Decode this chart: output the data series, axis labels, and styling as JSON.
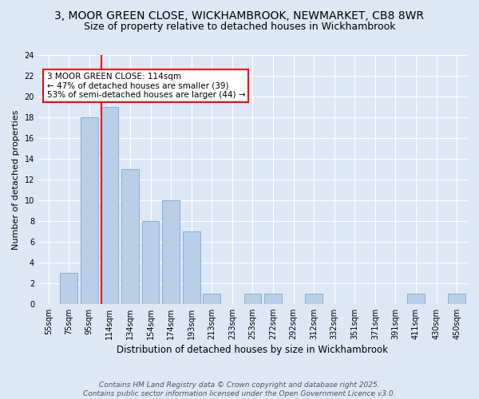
{
  "title_line1": "3, MOOR GREEN CLOSE, WICKHAMBROOK, NEWMARKET, CB8 8WR",
  "title_line2": "Size of property relative to detached houses in Wickhambrook",
  "xlabel": "Distribution of detached houses by size in Wickhambrook",
  "ylabel": "Number of detached properties",
  "footer_line1": "Contains HM Land Registry data © Crown copyright and database right 2025.",
  "footer_line2": "Contains public sector information licensed under the Open Government Licence v3.0.",
  "annotation_line1": "3 MOOR GREEN CLOSE: 114sqm",
  "annotation_line2": "← 47% of detached houses are smaller (39)",
  "annotation_line3": "53% of semi-detached houses are larger (44) →",
  "categories": [
    "55sqm",
    "75sqm",
    "95sqm",
    "114sqm",
    "134sqm",
    "154sqm",
    "174sqm",
    "193sqm",
    "213sqm",
    "233sqm",
    "253sqm",
    "272sqm",
    "292sqm",
    "312sqm",
    "332sqm",
    "351sqm",
    "371sqm",
    "391sqm",
    "411sqm",
    "430sqm",
    "450sqm"
  ],
  "bar_heights": [
    0,
    3,
    18,
    19,
    13,
    8,
    10,
    7,
    1,
    0,
    1,
    1,
    0,
    1,
    0,
    0,
    0,
    0,
    1,
    0,
    1
  ],
  "red_bar_index": 3,
  "bar_color": "#b8cfe8",
  "bar_edge_color": "#8aafd0",
  "red_line_index": 3,
  "ylim": [
    0,
    24
  ],
  "yticks": [
    0,
    2,
    4,
    6,
    8,
    10,
    12,
    14,
    16,
    18,
    20,
    22,
    24
  ],
  "bg_color": "#dce8f5",
  "plot_bg_color": "#dce8f5",
  "grid_color": "#ffffff",
  "title_fontsize": 10,
  "subtitle_fontsize": 9,
  "ylabel_fontsize": 8,
  "xlabel_fontsize": 8.5,
  "tick_fontsize": 7,
  "footer_fontsize": 6.5,
  "annotation_fontsize": 7.5
}
